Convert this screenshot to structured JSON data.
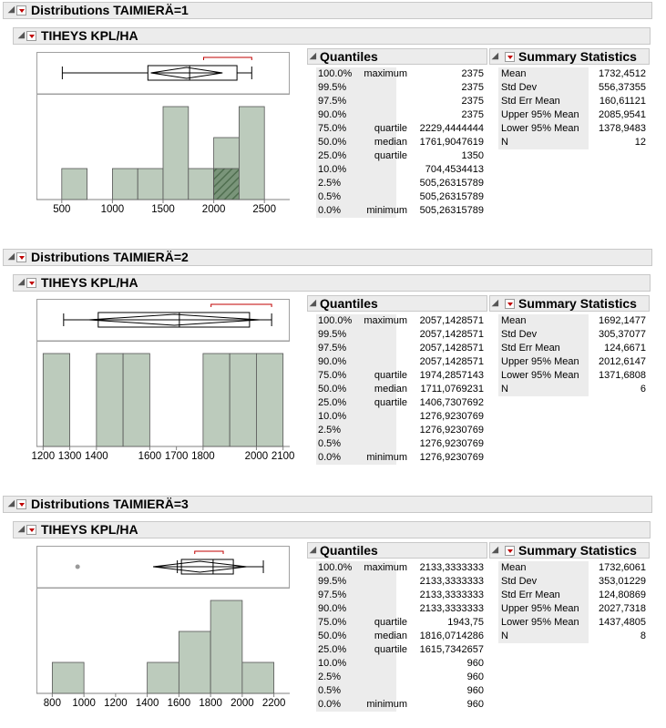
{
  "colors": {
    "bar": "#bccbbc",
    "bar_stroke": "#555555",
    "hatch": "#4f6e4f",
    "whisker_red": "#c00000",
    "header_bg": "#ececec"
  },
  "quantile_labels": [
    "100.0%",
    "99.5%",
    "97.5%",
    "90.0%",
    "75.0%",
    "50.0%",
    "25.0%",
    "10.0%",
    "2.5%",
    "0.5%",
    "0.0%"
  ],
  "quantile_names": [
    "maximum",
    "",
    "",
    "",
    "quartile",
    "median",
    "quartile",
    "",
    "",
    "",
    "minimum"
  ],
  "summary_labels": [
    "Mean",
    "Std Dev",
    "Std Err Mean",
    "Upper 95% Mean",
    "Lower 95% Mean",
    "N"
  ],
  "sections": [
    {
      "title": "Distributions TAIMIERÄ=1",
      "variable": "TIHEYS KPL/HA",
      "quantiles_title": "Quantiles",
      "summary_title": "Summary Statistics",
      "quantile_values": [
        "2375",
        "2375",
        "2375",
        "2375",
        "2229,4444444",
        "1761,9047619",
        "1350",
        "704,4534413",
        "505,26315789",
        "505,26315789",
        "505,26315789"
      ],
      "summary_values": [
        "1732,4512",
        "556,37355",
        "160,61121",
        "2085,9541",
        "1378,9483",
        "12"
      ],
      "axis_ticks": [
        "500",
        "1000",
        "1500",
        "2000",
        "2500"
      ]
    },
    {
      "title": "Distributions TAIMIERÄ=2",
      "variable": "TIHEYS KPL/HA",
      "quantiles_title": "Quantiles",
      "summary_title": "Summary Statistics",
      "quantile_values": [
        "2057,1428571",
        "2057,1428571",
        "2057,1428571",
        "2057,1428571",
        "1974,2857143",
        "1711,0769231",
        "1406,7307692",
        "1276,9230769",
        "1276,9230769",
        "1276,9230769",
        "1276,9230769"
      ],
      "summary_values": [
        "1692,1477",
        "305,37077",
        "124,6671",
        "2012,6147",
        "1371,6808",
        "6"
      ],
      "axis_ticks": [
        "1200",
        "1300",
        "1400",
        "1600",
        "1700",
        "1800",
        "2000",
        "2100"
      ]
    },
    {
      "title": "Distributions TAIMIERÄ=3",
      "variable": "TIHEYS KPL/HA",
      "quantiles_title": "Quantiles",
      "summary_title": "Summary Statistics",
      "quantile_values": [
        "2133,3333333",
        "2133,3333333",
        "2133,3333333",
        "2133,3333333",
        "1943,75",
        "1816,0714286",
        "1615,7342657",
        "960",
        "960",
        "960",
        "960"
      ],
      "summary_values": [
        "1732,6061",
        "353,01229",
        "124,80869",
        "2027,7318",
        "1437,4805",
        "8"
      ],
      "axis_ticks": [
        "800",
        "1000",
        "1200",
        "1400",
        "1600",
        "1800",
        "2000",
        "2200"
      ]
    }
  ],
  "chart_data": [
    {
      "type": "bar",
      "title": "",
      "xlabel": "",
      "ylabel": "",
      "xlim": [
        250,
        2750
      ],
      "bin_width": 250,
      "bins": [
        [
          500,
          750
        ],
        [
          750,
          1000
        ],
        [
          1000,
          1250
        ],
        [
          1250,
          1500
        ],
        [
          1500,
          1750
        ],
        [
          1750,
          2000
        ],
        [
          2000,
          2250
        ],
        [
          2250,
          2500
        ]
      ],
      "values": [
        1,
        0,
        1,
        1,
        3,
        1,
        2,
        3
      ],
      "highlight_bin": [
        2000,
        2250
      ],
      "box": {
        "min": 505.26,
        "q1": 1350,
        "median": 1761.9,
        "q3": 2229.44,
        "max": 2375,
        "mean": 1732.45,
        "ci_low": 1378.95,
        "ci_high": 2085.95,
        "shortest_half": [
          1900,
          2375
        ]
      },
      "outliers": []
    },
    {
      "type": "bar",
      "title": "",
      "xlabel": "",
      "ylabel": "",
      "xlim": [
        1175,
        2125
      ],
      "bin_width": 100,
      "bins": [
        [
          1200,
          1300
        ],
        [
          1300,
          1400
        ],
        [
          1400,
          1500
        ],
        [
          1500,
          1600
        ],
        [
          1600,
          1700
        ],
        [
          1700,
          1800
        ],
        [
          1800,
          1900
        ],
        [
          1900,
          2000
        ],
        [
          2000,
          2100
        ]
      ],
      "values": [
        1,
        0,
        1,
        1,
        0,
        0,
        1,
        1,
        1
      ],
      "box": {
        "min": 1276.92,
        "q1": 1406.73,
        "median": 1711.08,
        "q3": 1974.29,
        "max": 2057.14,
        "mean": 1692.15,
        "ci_low": 1371.68,
        "ci_high": 2012.61,
        "shortest_half": [
          1830,
          2057
        ]
      },
      "outliers": []
    },
    {
      "type": "bar",
      "title": "",
      "xlabel": "",
      "ylabel": "",
      "xlim": [
        700,
        2300
      ],
      "bin_width": 200,
      "bins": [
        [
          800,
          1000
        ],
        [
          1000,
          1200
        ],
        [
          1200,
          1400
        ],
        [
          1400,
          1600
        ],
        [
          1600,
          1800
        ],
        [
          1800,
          2000
        ],
        [
          2000,
          2200
        ]
      ],
      "values": [
        1,
        0,
        0,
        1,
        2,
        3,
        1
      ],
      "box": {
        "min": 1590,
        "q1": 1615.73,
        "median": 1816.07,
        "q3": 1943.75,
        "max": 2133.33,
        "mean": 1732.61,
        "ci_low": 1437.48,
        "ci_high": 2027.73,
        "shortest_half": [
          1700,
          1880
        ]
      },
      "outliers": [
        960
      ]
    }
  ]
}
